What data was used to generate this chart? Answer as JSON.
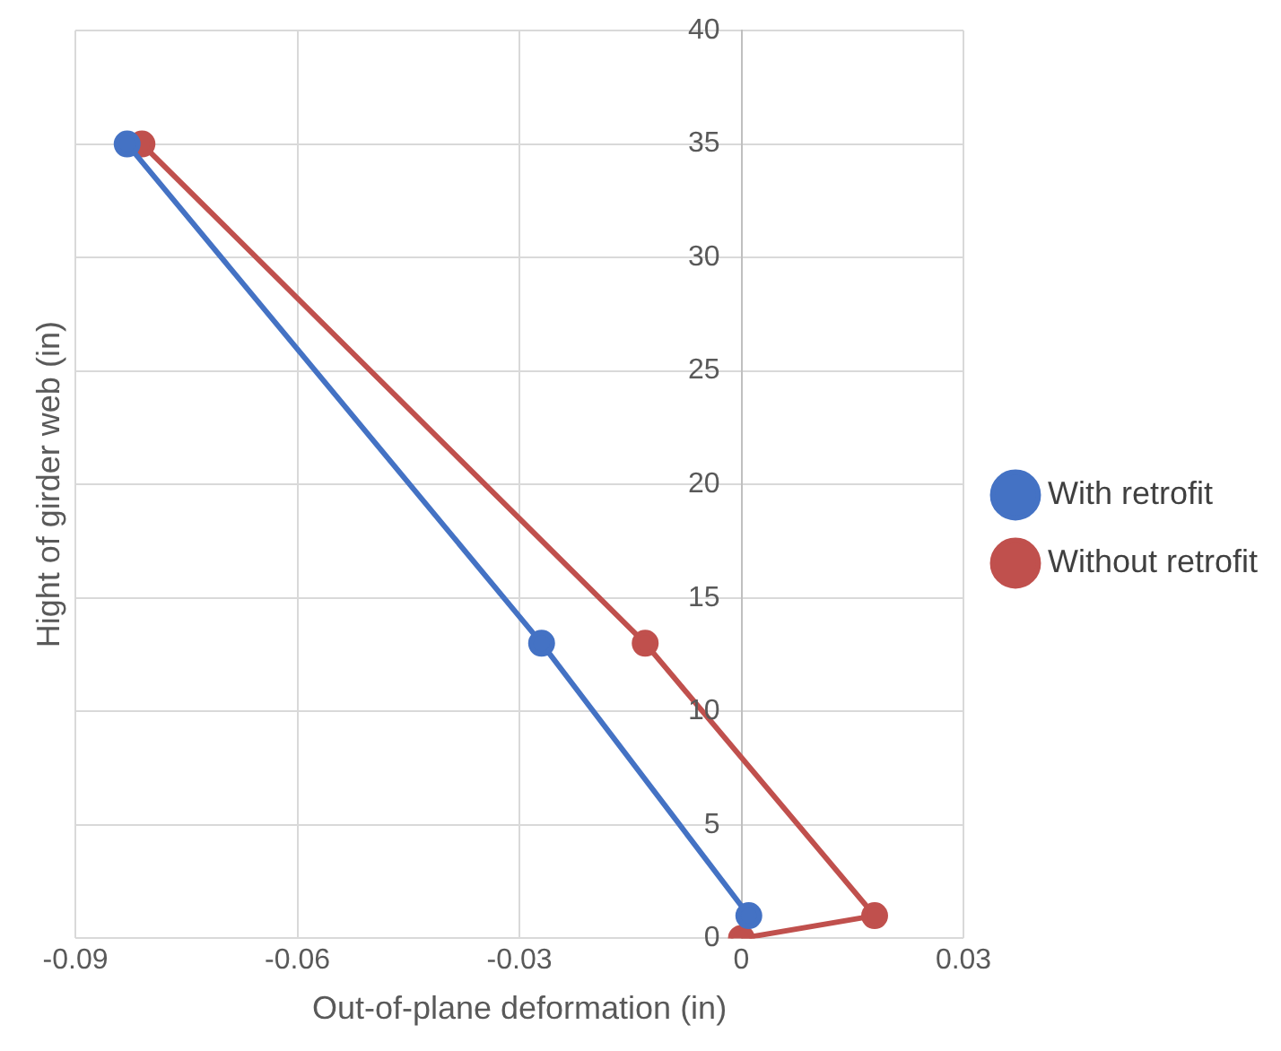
{
  "chart_data": {
    "type": "line",
    "xlabel": "Out-of-plane deformation (in)",
    "ylabel": "Hight of girder web (in)",
    "xlim": [
      -0.09,
      0.03
    ],
    "xticks": [
      -0.09,
      -0.06,
      -0.03,
      0,
      0.03
    ],
    "ylim": [
      0,
      40
    ],
    "yticks": [
      0,
      5,
      10,
      15,
      20,
      25,
      30,
      35,
      40
    ],
    "grid": true,
    "legend": "right",
    "marker": "circle",
    "line_style": "solid",
    "series": [
      {
        "name": "With retrofit",
        "color": "#4472c4",
        "x": [
          -0.083,
          -0.027,
          0.001
        ],
        "values": [
          35,
          13,
          1
        ]
      },
      {
        "name": "Without retrofit",
        "color": "#c0504d",
        "x": [
          -0.081,
          -0.013,
          0.018,
          0
        ],
        "values": [
          35,
          13,
          1,
          0
        ]
      }
    ]
  }
}
